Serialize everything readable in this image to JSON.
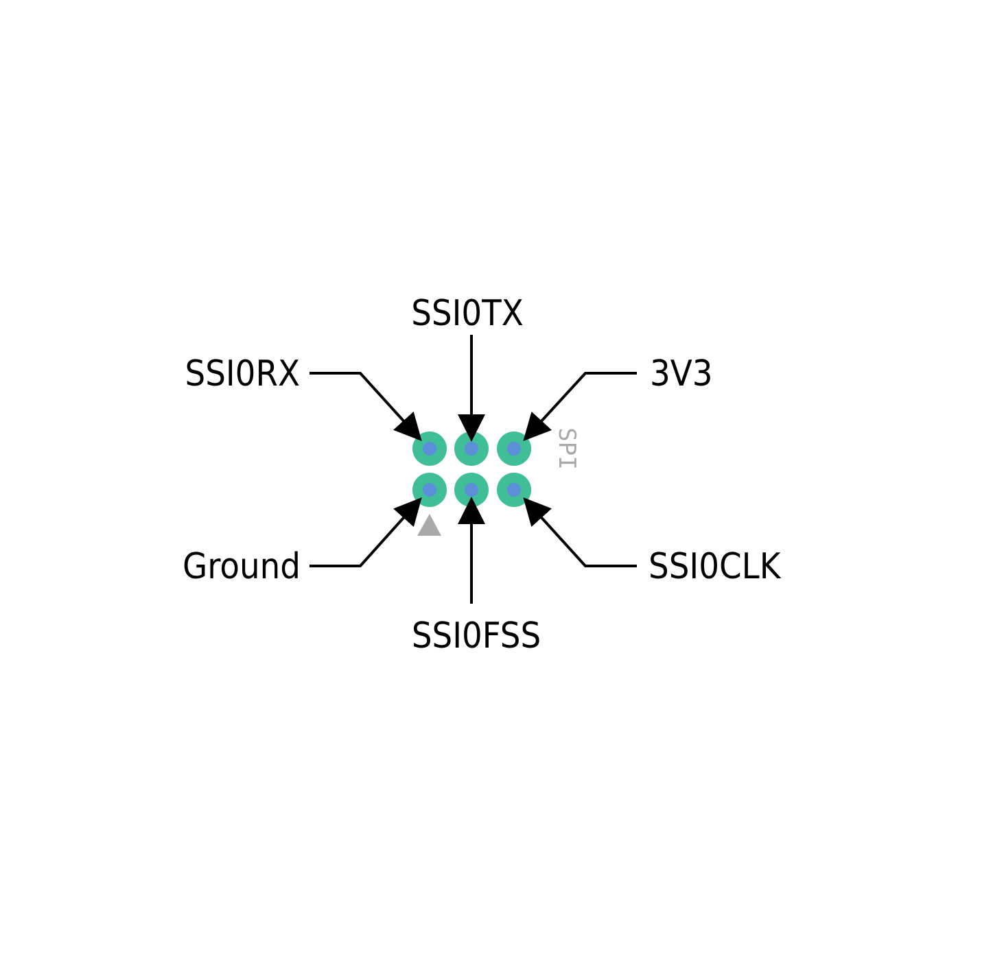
{
  "labels": {
    "ssi0tx": "SSI0TX",
    "ssi0rx": "SSI0RX",
    "v3v3": "3V3",
    "ground": "Ground",
    "ssi0fss": "SSI0FSS",
    "ssi0clk": "SSI0CLK"
  },
  "silkscreen": {
    "header_name": "SPI"
  },
  "colors": {
    "pad": "#3fbe97",
    "drill": "#5b8fd8",
    "silkscreen": "#a9a9a9",
    "text": "#000000",
    "background": "#ffffff"
  },
  "header": {
    "rows": 2,
    "columns": 3,
    "pin1_marker": "triangle"
  }
}
